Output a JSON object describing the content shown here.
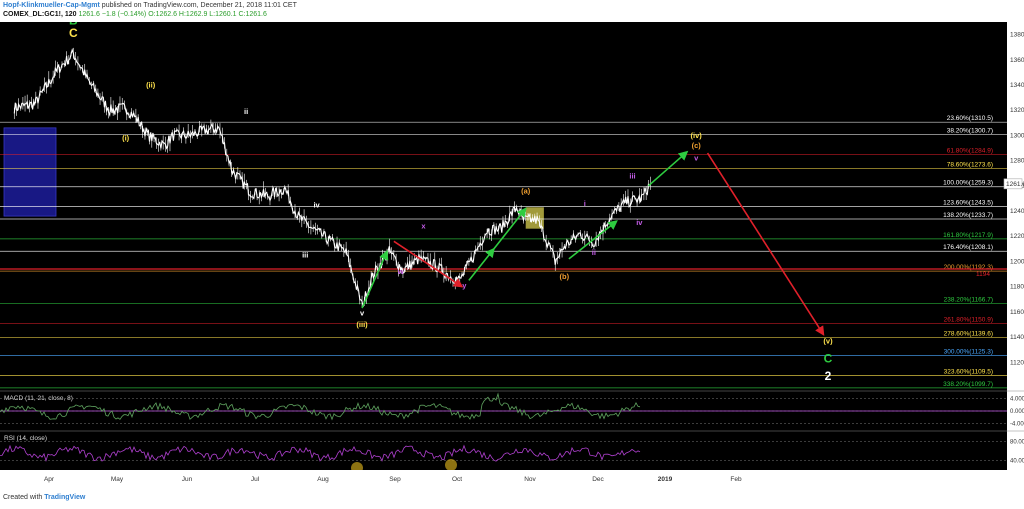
{
  "header": {
    "author": "Hopf-Klinkmueller-Cap-Mgmt",
    "published": "published on TradingView.com, December 21, 2018 11:01 CET",
    "symbol": "COMEX_DL:GC1!, 120",
    "price": "1261.6",
    "change": "−1.8 (−0.14%)",
    "ohlc": "O:1262.6 H:1262.9 L:1260.1 C:1261.6"
  },
  "footer": {
    "created_with": "Created with",
    "brand": "TradingView"
  },
  "colors": {
    "background": "#000000",
    "price": "#ffffff",
    "wave_green": "#2ecc40",
    "wave_yellow": "#ffe34d",
    "wave_orange": "#f0a030",
    "wave_purple": "#c45ce8",
    "arrow_red": "#e0202a",
    "macd": "#5fa35f",
    "rsi": "#b040d0"
  },
  "chart_data": {
    "type": "line",
    "title": "",
    "x_labels": [
      "Apr",
      "May",
      "Jun",
      "Jul",
      "Aug",
      "Sep",
      "Oct",
      "Nov",
      "Dec",
      "2019",
      "Feb"
    ],
    "y_ticks": [
      1120,
      1140,
      1160,
      1180,
      1200,
      1220,
      1240,
      1260,
      1280,
      1300,
      1320,
      1340,
      1360,
      1380
    ],
    "ylim": [
      1098,
      1390
    ],
    "price_path": {
      "date": [
        "2018-03-16",
        "2018-03-25",
        "2018-04-04",
        "2018-04-11",
        "2018-04-18",
        "2018-04-27",
        "2018-05-04",
        "2018-05-08",
        "2018-05-14",
        "2018-05-21",
        "2018-05-25",
        "2018-06-01",
        "2018-06-08",
        "2018-06-14",
        "2018-06-20",
        "2018-06-28",
        "2018-07-06",
        "2018-07-13",
        "2018-07-19",
        "2018-07-26",
        "2018-08-03",
        "2018-08-09",
        "2018-08-16",
        "2018-08-21",
        "2018-08-28",
        "2018-09-03",
        "2018-09-10",
        "2018-09-17",
        "2018-09-24",
        "2018-09-28",
        "2018-10-03",
        "2018-10-10",
        "2018-10-16",
        "2018-10-23",
        "2018-10-26",
        "2018-11-01",
        "2018-11-06",
        "2018-11-09",
        "2018-11-13",
        "2018-11-20",
        "2018-11-26",
        "2018-12-03",
        "2018-12-10",
        "2018-12-17",
        "2018-12-21"
      ],
      "close": [
        1322,
        1325,
        1352,
        1365,
        1342,
        1320,
        1322,
        1315,
        1300,
        1292,
        1300,
        1300,
        1304,
        1306,
        1272,
        1255,
        1252,
        1258,
        1235,
        1225,
        1215,
        1207,
        1165,
        1190,
        1208,
        1193,
        1202,
        1197,
        1188,
        1185,
        1201,
        1225,
        1226,
        1243,
        1233,
        1233,
        1214,
        1200,
        1212,
        1222,
        1215,
        1235,
        1247,
        1250,
        1262
      ]
    },
    "fib_levels": [
      {
        "label": "23.60%(1310.5)",
        "value": 1310.5,
        "color": "#ffffff"
      },
      {
        "label": "38.20%(1300.7)",
        "value": 1300.7,
        "color": "#ffffff"
      },
      {
        "label": "61.80%(1284.9)",
        "value": 1284.9,
        "color": "#e0202a"
      },
      {
        "label": "78.60%(1273.6)",
        "value": 1273.6,
        "color": "#ffe34d"
      },
      {
        "label": "100.00%(1259.3)",
        "value": 1259.3,
        "color": "#ffffff"
      },
      {
        "label": "123.60%(1243.5)",
        "value": 1243.5,
        "color": "#ffffff"
      },
      {
        "label": "138.20%(1233.7)",
        "value": 1233.7,
        "color": "#ffffff"
      },
      {
        "label": "161.80%(1217.9)",
        "value": 1217.9,
        "color": "#2ecc40"
      },
      {
        "label": "176.40%(1208.1)",
        "value": 1208.1,
        "color": "#ffffff"
      },
      {
        "label": "200.00%(1192.3)",
        "value": 1192.3,
        "color": "#f0a030"
      },
      {
        "label": "238.20%(1166.7)",
        "value": 1166.7,
        "color": "#2ecc40"
      },
      {
        "label": "261.80%(1150.9)",
        "value": 1150.9,
        "color": "#e0202a"
      },
      {
        "label": "278.60%(1139.6)",
        "value": 1139.6,
        "color": "#ffe34d"
      },
      {
        "label": "300.00%(1125.3)",
        "value": 1125.3,
        "color": "#4aa8ff"
      },
      {
        "label": "323.60%(1109.5)",
        "value": 1109.5,
        "color": "#ffe34d"
      },
      {
        "label": "338.20%(1099.7)",
        "value": 1099.7,
        "color": "#2ecc40"
      }
    ],
    "red_level_label": "1194",
    "wave_labels": [
      {
        "text": "B",
        "date": "2018-04-11",
        "price": 1388,
        "color": "#2ecc40"
      },
      {
        "text": "C",
        "date": "2018-04-11",
        "price": 1378,
        "color": "#ffe34d"
      },
      {
        "text": "(i)",
        "date": "2018-05-04",
        "price": 1296,
        "color": "#ffe34d"
      },
      {
        "text": "(ii)",
        "date": "2018-05-15",
        "price": 1338,
        "color": "#ffe34d"
      },
      {
        "text": "ii",
        "date": "2018-06-26",
        "price": 1317,
        "color": "#ffffff"
      },
      {
        "text": "iii",
        "date": "2018-07-22",
        "price": 1203,
        "color": "#ffffff"
      },
      {
        "text": "iv",
        "date": "2018-07-27",
        "price": 1243,
        "color": "#ffffff"
      },
      {
        "text": "v",
        "date": "2018-08-16",
        "price": 1157,
        "color": "#ffffff"
      },
      {
        "text": "(iii)",
        "date": "2018-08-16",
        "price": 1148,
        "color": "#ffe34d"
      },
      {
        "text": "w",
        "date": "2018-09-02",
        "price": 1190,
        "color": "#c45ce8"
      },
      {
        "text": "x",
        "date": "2018-09-12",
        "price": 1226,
        "color": "#c45ce8"
      },
      {
        "text": "y",
        "date": "2018-09-30",
        "price": 1179,
        "color": "#c45ce8"
      },
      {
        "text": "(a)",
        "date": "2018-10-27",
        "price": 1254,
        "color": "#f0a030"
      },
      {
        "text": "(b)",
        "date": "2018-11-13",
        "price": 1186,
        "color": "#f0a030"
      },
      {
        "text": "i",
        "date": "2018-11-22",
        "price": 1244,
        "color": "#c45ce8"
      },
      {
        "text": "ii",
        "date": "2018-11-26",
        "price": 1205,
        "color": "#c45ce8"
      },
      {
        "text": "iii",
        "date": "2018-12-13",
        "price": 1266,
        "color": "#c45ce8"
      },
      {
        "text": "iv",
        "date": "2018-12-16",
        "price": 1229,
        "color": "#c45ce8"
      },
      {
        "text": "(iv)",
        "date": "2019-01-10",
        "price": 1298,
        "color": "#ffe34d"
      },
      {
        "text": "(c)",
        "date": "2019-01-10",
        "price": 1290,
        "color": "#f0a030"
      },
      {
        "text": "v",
        "date": "2019-01-10",
        "price": 1280,
        "color": "#c45ce8"
      },
      {
        "text": "(v)",
        "date": "2019-03-09",
        "price": 1135,
        "color": "#ffe34d"
      },
      {
        "text": "C",
        "date": "2019-03-09",
        "price": 1120,
        "color": "#2ecc40"
      },
      {
        "text": "2",
        "date": "2019-03-09",
        "price": 1106,
        "color": "#ffffff"
      }
    ],
    "green_arrows": [
      {
        "from_date": "2018-08-16",
        "from": 1163,
        "to_date": "2018-08-27",
        "to": 1208
      },
      {
        "from_date": "2018-10-02",
        "from": 1185,
        "to_date": "2018-10-13",
        "to": 1210
      },
      {
        "from_date": "2018-10-13",
        "from": 1210,
        "to_date": "2018-10-27",
        "to": 1242
      },
      {
        "from_date": "2018-11-15",
        "from": 1202,
        "to_date": "2018-12-06",
        "to": 1232
      },
      {
        "from_date": "2018-12-20",
        "from": 1260,
        "to_date": "2019-01-06",
        "to": 1287
      }
    ],
    "red_arrows": [
      {
        "from_date": "2018-08-30",
        "from": 1216,
        "to_date": "2018-09-29",
        "to": 1180
      },
      {
        "from_date": "2019-01-15",
        "from": 1286,
        "to_date": "2019-03-07",
        "to": 1142
      }
    ],
    "indicators": [
      {
        "name": "MACD (11, 21, close, 8)",
        "ticks": [
          "4.0000",
          "0.0000",
          "-4.0000"
        ],
        "range": [
          -6,
          6
        ]
      },
      {
        "name": "RSI (14, close)",
        "ticks": [
          "80.0000",
          "40.0000"
        ],
        "range": [
          20,
          100
        ]
      }
    ]
  }
}
